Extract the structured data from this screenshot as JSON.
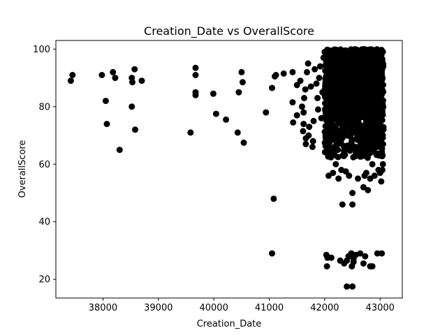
{
  "chart_data": {
    "type": "scatter",
    "title": "Creation_Date vs OverallScore",
    "xlabel": "Creation_Date",
    "ylabel": "OverallScore",
    "xlim": [
      37150,
      43400
    ],
    "ylim": [
      13.5,
      103
    ],
    "xticks": [
      38000,
      39000,
      40000,
      41000,
      42000,
      43000
    ],
    "yticks": [
      20,
      40,
      60,
      80,
      100
    ],
    "grid": false,
    "marker_color": "#000000",
    "points": [
      [
        37420,
        89
      ],
      [
        37450,
        91
      ],
      [
        37980,
        91
      ],
      [
        38050,
        82
      ],
      [
        38070,
        74
      ],
      [
        38180,
        92
      ],
      [
        38220,
        90
      ],
      [
        38300,
        65
      ],
      [
        38520,
        90
      ],
      [
        38520,
        80
      ],
      [
        38530,
        88.5
      ],
      [
        38570,
        93
      ],
      [
        38580,
        72
      ],
      [
        38700,
        89
      ],
      [
        39580,
        71
      ],
      [
        39670,
        93.5
      ],
      [
        39670,
        91
      ],
      [
        39670,
        85
      ],
      [
        39670,
        84
      ],
      [
        39990,
        84.5
      ],
      [
        40040,
        77.5
      ],
      [
        40220,
        75.5
      ],
      [
        40430,
        71
      ],
      [
        40450,
        85
      ],
      [
        40500,
        92
      ],
      [
        40520,
        88.5
      ],
      [
        40540,
        67.5
      ],
      [
        40940,
        78
      ],
      [
        41050,
        86.5
      ],
      [
        41050,
        29
      ],
      [
        41080,
        48
      ],
      [
        41100,
        90.5
      ],
      [
        41120,
        91
      ],
      [
        41260,
        91.5
      ],
      [
        41420,
        92
      ],
      [
        41420,
        81.5
      ],
      [
        41430,
        74.5
      ],
      [
        41500,
        87.5
      ],
      [
        41500,
        77
      ],
      [
        41560,
        89
      ],
      [
        41590,
        80
      ],
      [
        41610,
        71.5
      ],
      [
        41620,
        78
      ],
      [
        41620,
        74
      ],
      [
        41630,
        83
      ],
      [
        41650,
        86
      ],
      [
        41660,
        69
      ],
      [
        41660,
        67
      ],
      [
        41680,
        92
      ],
      [
        41700,
        95
      ],
      [
        41710,
        70
      ],
      [
        41720,
        73
      ],
      [
        41750,
        87
      ],
      [
        41780,
        66
      ],
      [
        41790,
        68
      ],
      [
        41800,
        75
      ],
      [
        41820,
        93
      ],
      [
        41850,
        88
      ],
      [
        41870,
        83
      ],
      [
        41880,
        79
      ],
      [
        41900,
        90
      ],
      [
        41920,
        94
      ],
      [
        41940,
        76
      ],
      [
        41960,
        85
      ],
      [
        41980,
        97
      ],
      [
        42000,
        99
      ],
      [
        42030,
        28.5
      ],
      [
        42040,
        24.5
      ],
      [
        42050,
        27.5
      ],
      [
        42070,
        56
      ],
      [
        42120,
        27.5
      ],
      [
        42150,
        57
      ],
      [
        42200,
        60
      ],
      [
        42250,
        55
      ],
      [
        42280,
        26.5
      ],
      [
        42300,
        58
      ],
      [
        42320,
        46
      ],
      [
        42350,
        25.5
      ],
      [
        42380,
        57.5
      ],
      [
        42400,
        17.5
      ],
      [
        42400,
        26.5
      ],
      [
        42430,
        28
      ],
      [
        42440,
        56
      ],
      [
        42480,
        29
      ],
      [
        42490,
        24.5
      ],
      [
        42500,
        17.5
      ],
      [
        42500,
        46
      ],
      [
        42500,
        50
      ],
      [
        42520,
        27
      ],
      [
        42520,
        26
      ],
      [
        42560,
        28.5
      ],
      [
        42600,
        55
      ],
      [
        42640,
        29
      ],
      [
        42700,
        52
      ],
      [
        42700,
        25.5
      ],
      [
        42720,
        56
      ],
      [
        42730,
        28
      ],
      [
        42750,
        57
      ],
      [
        42780,
        51
      ],
      [
        42820,
        55
      ],
      [
        42820,
        24.5
      ],
      [
        42860,
        24.5
      ],
      [
        42860,
        60
      ],
      [
        42900,
        56
      ],
      [
        42950,
        29
      ],
      [
        42970,
        58
      ],
      [
        42980,
        63
      ],
      [
        43000,
        57
      ],
      [
        43020,
        54
      ],
      [
        43030,
        29
      ],
      [
        43040,
        58
      ],
      [
        43050,
        60
      ]
    ],
    "dense_cluster": {
      "x_range": [
        42000,
        43060
      ],
      "y_range": [
        62,
        100
      ],
      "count": 1400
    }
  }
}
